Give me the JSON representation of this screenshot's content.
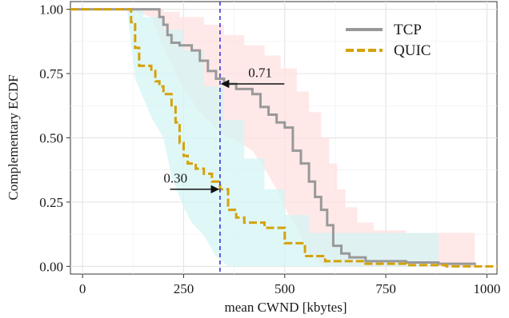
{
  "chart_data": {
    "type": "line",
    "xlabel": "mean CWND [kbytes]",
    "ylabel": "Complementary ECDF",
    "xlim": [
      -30,
      1025
    ],
    "ylim": [
      -0.03,
      1.03
    ],
    "x_ticks": [
      0,
      250,
      500,
      750,
      1000
    ],
    "x_tick_labels": [
      "0",
      "250",
      "500",
      "750",
      "1000"
    ],
    "y_ticks": [
      0,
      0.25,
      0.5,
      0.75,
      1.0
    ],
    "y_tick_labels": [
      "0.00",
      "0.25",
      "0.50",
      "0.75",
      "1.00"
    ],
    "grid": true,
    "legend_position": "top-right",
    "vline": {
      "x": 340,
      "color": "#2b2bd6",
      "style": "dashed"
    },
    "annotations": [
      {
        "text": "0.71",
        "x": 340,
        "y": 0.71,
        "text_x": 400,
        "text_y": 0.755
      },
      {
        "text": "0.30",
        "x": 340,
        "y": 0.3,
        "text_x": 240,
        "text_y": 0.345
      }
    ],
    "series": [
      {
        "name": "TCP",
        "color": "#999999",
        "band_color": "#ffe0e0",
        "style": "solid",
        "points": [
          [
            -30,
            1.0
          ],
          [
            120,
            1.0
          ],
          [
            180,
            1.0
          ],
          [
            190,
            0.97
          ],
          [
            200,
            0.94
          ],
          [
            210,
            0.9
          ],
          [
            220,
            0.87
          ],
          [
            240,
            0.86
          ],
          [
            270,
            0.84
          ],
          [
            290,
            0.8
          ],
          [
            310,
            0.76
          ],
          [
            330,
            0.73
          ],
          [
            350,
            0.71
          ],
          [
            380,
            0.69
          ],
          [
            420,
            0.67
          ],
          [
            440,
            0.62
          ],
          [
            460,
            0.59
          ],
          [
            480,
            0.56
          ],
          [
            500,
            0.54
          ],
          [
            520,
            0.45
          ],
          [
            540,
            0.4
          ],
          [
            560,
            0.33
          ],
          [
            575,
            0.27
          ],
          [
            590,
            0.22
          ],
          [
            605,
            0.16
          ],
          [
            620,
            0.08
          ],
          [
            640,
            0.05
          ],
          [
            660,
            0.035
          ],
          [
            700,
            0.02
          ],
          [
            800,
            0.015
          ],
          [
            880,
            0.01
          ],
          [
            970,
            0.005
          ]
        ],
        "band_upper": [
          [
            110,
            1.0
          ],
          [
            180,
            1.0
          ],
          [
            200,
            0.99
          ],
          [
            240,
            0.97
          ],
          [
            300,
            0.94
          ],
          [
            350,
            0.9
          ],
          [
            400,
            0.86
          ],
          [
            450,
            0.82
          ],
          [
            490,
            0.77
          ],
          [
            530,
            0.68
          ],
          [
            560,
            0.6
          ],
          [
            590,
            0.5
          ],
          [
            610,
            0.4
          ],
          [
            630,
            0.3
          ],
          [
            650,
            0.23
          ],
          [
            680,
            0.17
          ],
          [
            720,
            0.14
          ],
          [
            800,
            0.13
          ],
          [
            880,
            0.13
          ],
          [
            970,
            0.13
          ]
        ],
        "band_lower": [
          [
            110,
            1.0
          ],
          [
            170,
            0.97
          ],
          [
            200,
            0.85
          ],
          [
            240,
            0.72
          ],
          [
            290,
            0.6
          ],
          [
            340,
            0.52
          ],
          [
            380,
            0.49
          ],
          [
            420,
            0.45
          ],
          [
            450,
            0.38
          ],
          [
            480,
            0.3
          ],
          [
            510,
            0.2
          ],
          [
            540,
            0.12
          ],
          [
            560,
            0.05
          ],
          [
            600,
            0.0
          ],
          [
            700,
            0.0
          ],
          [
            880,
            0.0
          ],
          [
            970,
            0.0
          ]
        ]
      },
      {
        "name": "QUIC",
        "color": "#d4a20a",
        "band_color": "#d4f4f4",
        "style": "dashed",
        "points": [
          [
            -30,
            1.0
          ],
          [
            110,
            1.0
          ],
          [
            120,
            0.95
          ],
          [
            130,
            0.85
          ],
          [
            140,
            0.78
          ],
          [
            170,
            0.76
          ],
          [
            180,
            0.72
          ],
          [
            190,
            0.7
          ],
          [
            200,
            0.67
          ],
          [
            220,
            0.62
          ],
          [
            230,
            0.56
          ],
          [
            240,
            0.48
          ],
          [
            250,
            0.43
          ],
          [
            260,
            0.4
          ],
          [
            280,
            0.38
          ],
          [
            300,
            0.36
          ],
          [
            320,
            0.33
          ],
          [
            340,
            0.3
          ],
          [
            360,
            0.22
          ],
          [
            380,
            0.19
          ],
          [
            400,
            0.17
          ],
          [
            450,
            0.15
          ],
          [
            500,
            0.09
          ],
          [
            550,
            0.04
          ],
          [
            600,
            0.02
          ],
          [
            700,
            0.01
          ],
          [
            800,
            0.005
          ],
          [
            900,
            0.0
          ],
          [
            1025,
            0.0
          ]
        ],
        "band_upper": [
          [
            110,
            1.0
          ],
          [
            150,
            0.97
          ],
          [
            200,
            0.92
          ],
          [
            250,
            0.84
          ],
          [
            300,
            0.7
          ],
          [
            350,
            0.57
          ],
          [
            400,
            0.42
          ],
          [
            450,
            0.3
          ],
          [
            500,
            0.2
          ],
          [
            560,
            0.13
          ],
          [
            700,
            0.13
          ],
          [
            880,
            0.13
          ]
        ],
        "band_lower": [
          [
            110,
            1.0
          ],
          [
            130,
            0.73
          ],
          [
            170,
            0.58
          ],
          [
            200,
            0.5
          ],
          [
            220,
            0.35
          ],
          [
            250,
            0.23
          ],
          [
            270,
            0.17
          ],
          [
            300,
            0.12
          ],
          [
            330,
            0.04
          ],
          [
            360,
            0.0
          ],
          [
            500,
            0.0
          ],
          [
            700,
            0.0
          ],
          [
            880,
            0.0
          ]
        ]
      }
    ]
  }
}
